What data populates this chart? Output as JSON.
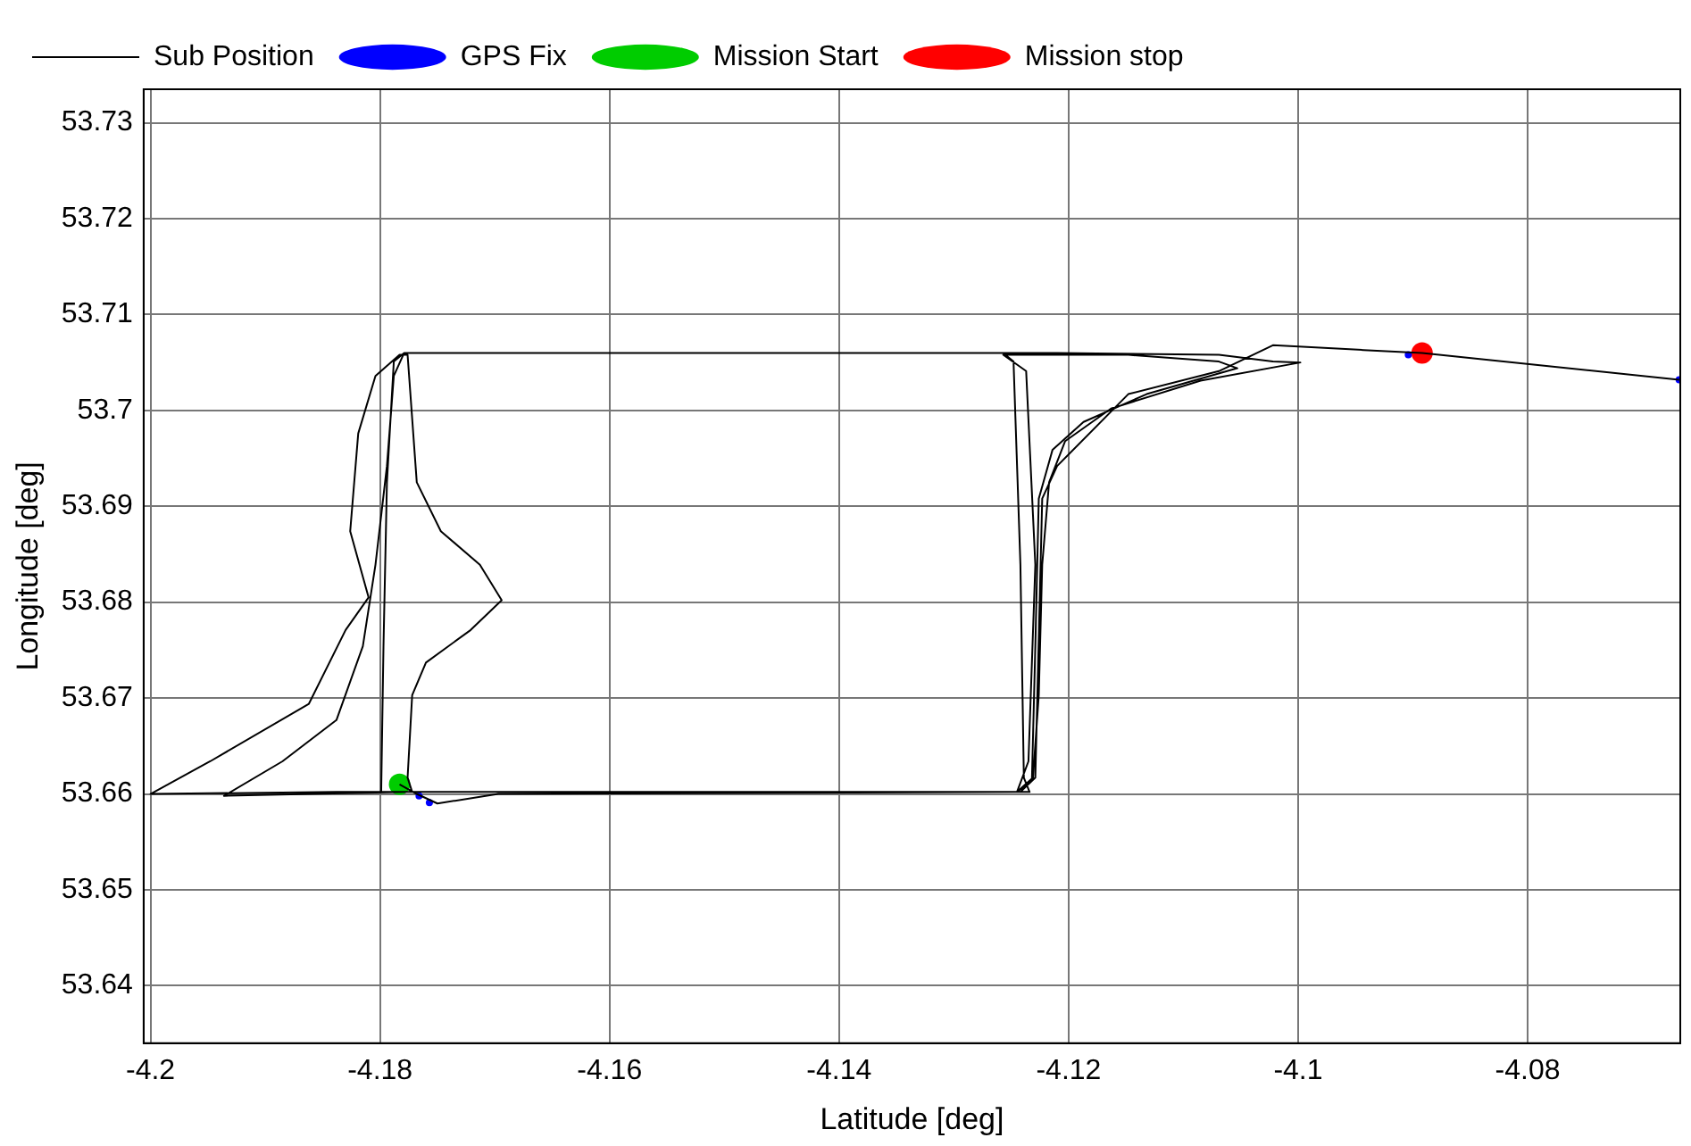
{
  "chart_data": {
    "type": "scatter",
    "xlabel": "Latitude [deg]",
    "ylabel": "Longitude [deg]",
    "xlim": [
      -4.2006,
      -4.0667
    ],
    "ylim": [
      53.634,
      53.7335
    ],
    "xticks": [
      -4.2,
      -4.18,
      -4.16,
      -4.14,
      -4.12,
      -4.1,
      -4.08
    ],
    "yticks": [
      53.64,
      53.65,
      53.66,
      53.67,
      53.68,
      53.69,
      53.7,
      53.71,
      53.72,
      53.73
    ],
    "grid": true,
    "legend": "top",
    "line_style": "solid",
    "series": [
      {
        "name": "Sub Position",
        "type": "line",
        "color": "#000000",
        "marker": "none",
        "x": [
          -4.1783,
          -4.1768,
          -4.175,
          -4.1697,
          -4.1245,
          -4.1231,
          -4.1226,
          -4.1223,
          -4.1217,
          -4.1203,
          -4.1163,
          -4.1085,
          -4.0998,
          -4.1022,
          -4.1069,
          -4.121,
          -4.1779,
          -4.1788,
          -4.1794,
          -4.1797,
          -4.1799,
          -4.1245,
          -4.1232,
          -4.1229,
          -4.1226,
          -4.1214,
          -4.1187,
          -4.1132,
          -4.1053,
          -4.1069,
          -4.1148,
          -4.1257,
          -4.1237,
          -4.1229,
          -4.1235,
          -4.1245,
          -4.1776,
          -4.1936,
          -4.1885,
          -4.1838,
          -4.1815,
          -4.1804,
          -4.1794,
          -4.1788,
          -4.1779,
          -4.1257,
          -4.1248,
          -4.1242,
          -4.1239,
          -4.1234,
          -4.1838,
          -4.2,
          -4.1948,
          -4.1862,
          -4.183,
          -4.181,
          -4.1826,
          -4.1819,
          -4.1804,
          -4.1783,
          -4.1776,
          -4.1768,
          -4.1747,
          -4.1713,
          -4.1694,
          -4.1721,
          -4.176,
          -4.1772,
          -4.1776,
          -4.1772,
          -4.1242,
          -4.1229,
          -4.1223,
          -4.121,
          -4.1148,
          -4.1069,
          -4.1022,
          -4.0943,
          -4.0892,
          -4.0668
        ],
        "values": [
          53.661,
          53.66,
          53.659,
          53.66,
          53.6602,
          53.6617,
          53.6703,
          53.6839,
          53.6925,
          53.6968,
          53.7002,
          53.7031,
          53.705,
          53.7051,
          53.7058,
          53.706,
          53.706,
          53.7051,
          53.6925,
          53.6754,
          53.6602,
          53.6602,
          53.6614,
          53.6754,
          53.6908,
          53.6959,
          53.6988,
          53.7017,
          53.7044,
          53.7051,
          53.7058,
          53.7058,
          53.7041,
          53.6839,
          53.6634,
          53.6602,
          53.6602,
          53.6598,
          53.6634,
          53.6677,
          53.6754,
          53.6839,
          53.6942,
          53.7036,
          53.706,
          53.706,
          53.7051,
          53.6839,
          53.6617,
          53.6602,
          53.6602,
          53.66,
          53.6634,
          53.6694,
          53.6771,
          53.6805,
          53.6874,
          53.6976,
          53.7036,
          53.7058,
          53.7058,
          53.6925,
          53.6874,
          53.6839,
          53.6802,
          53.6771,
          53.6737,
          53.6703,
          53.6617,
          53.6602,
          53.6602,
          53.6617,
          53.6908,
          53.6942,
          53.7017,
          53.7041,
          53.7068,
          53.7063,
          53.706,
          53.7032
        ]
      },
      {
        "name": "GPS Fix",
        "type": "scatter",
        "color": "#0000ff",
        "marker": "circle",
        "x": [
          -4.1766,
          -4.1757,
          -4.0904,
          -4.0668
        ],
        "values": [
          53.6598,
          53.6591,
          53.7058,
          53.7032
        ]
      },
      {
        "name": "Mission Start",
        "type": "scatter",
        "color": "#00cc00",
        "marker": "circle",
        "x": [
          -4.1783
        ],
        "values": [
          53.661
        ]
      },
      {
        "name": "Mission stop",
        "type": "scatter",
        "color": "#ff0000",
        "marker": "circle",
        "x": [
          -4.0892
        ],
        "values": [
          53.706
        ]
      }
    ]
  }
}
